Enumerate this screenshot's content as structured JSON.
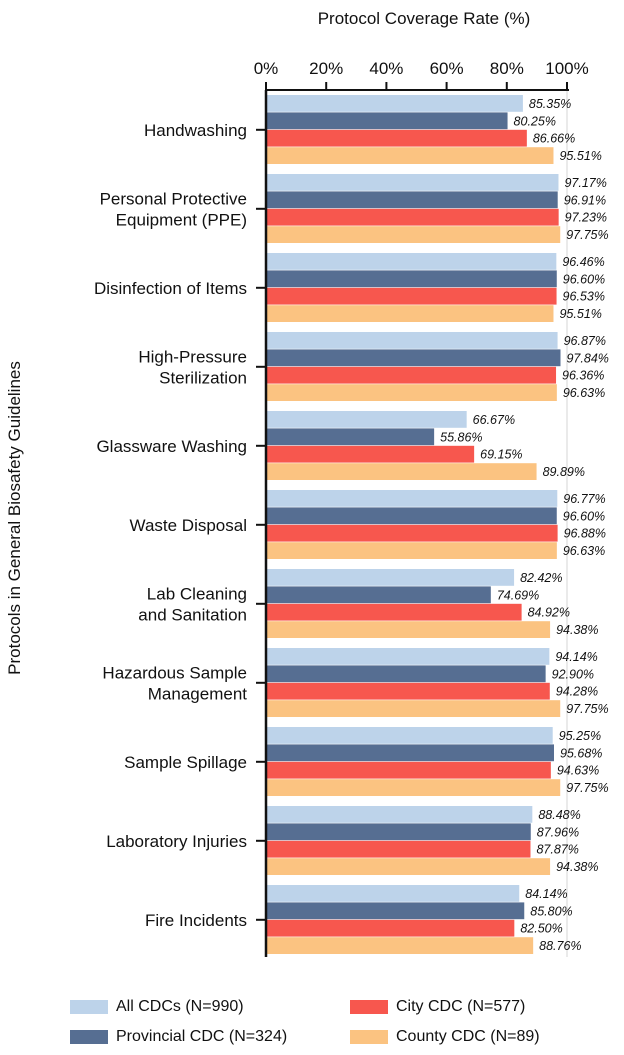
{
  "chart_data": {
    "type": "bar",
    "orientation": "horizontal",
    "title": "Protocol Coverage Rate (%)",
    "xlabel": "Protocol Coverage Rate (%)",
    "ylabel": "Protocols in General Biosafety Guidelines",
    "xlim": [
      0,
      100
    ],
    "x_ticks": [
      "0%",
      "20%",
      "40%",
      "60%",
      "80%",
      "100%"
    ],
    "x_tick_values": [
      0,
      20,
      40,
      60,
      80,
      100
    ],
    "x_axis_position": "top",
    "grid": "vertical-at-100",
    "legend_position": "bottom",
    "categories": [
      [
        "Handwashing"
      ],
      [
        "Personal Protective",
        "Equipment (PPE)"
      ],
      [
        "Disinfection of Items"
      ],
      [
        "High-Pressure",
        "Sterilization"
      ],
      [
        "Glassware Washing"
      ],
      [
        "Waste Disposal"
      ],
      [
        "Lab Cleaning",
        "and Sanitation"
      ],
      [
        "Hazardous Sample",
        "Management"
      ],
      [
        "Sample Spillage"
      ],
      [
        "Laboratory Injuries"
      ],
      [
        "Fire Incidents"
      ]
    ],
    "series": [
      {
        "name": "All CDCs (N=990)",
        "color": "#bdd3ea",
        "values": [
          85.35,
          97.17,
          96.46,
          96.87,
          66.67,
          96.77,
          82.42,
          94.14,
          95.25,
          88.48,
          84.14
        ],
        "labels": [
          "85.35%",
          "97.17%",
          "96.46%",
          "96.87%",
          "66.67%",
          "96.77%",
          "82.42%",
          "94.14%",
          "95.25%",
          "88.48%",
          "84.14%"
        ]
      },
      {
        "name": "Provincial CDC (N=324)",
        "color": "#566e92",
        "values": [
          80.25,
          96.91,
          96.6,
          97.84,
          55.86,
          96.6,
          74.69,
          92.9,
          95.68,
          87.96,
          85.8
        ],
        "labels": [
          "80.25%",
          "96.91%",
          "96.60%",
          "97.84%",
          "55.86%",
          "96.60%",
          "74.69%",
          "92.90%",
          "95.68%",
          "87.96%",
          "85.80%"
        ]
      },
      {
        "name": "City CDC (N=577)",
        "color": "#f7574e",
        "values": [
          86.66,
          97.23,
          96.53,
          96.36,
          69.15,
          96.88,
          84.92,
          94.28,
          94.63,
          87.87,
          82.5
        ],
        "labels": [
          "86.66%",
          "97.23%",
          "96.53%",
          "96.36%",
          "69.15%",
          "96.88%",
          "84.92%",
          "94.28%",
          "94.63%",
          "87.87%",
          "82.50%"
        ]
      },
      {
        "name": "County CDC (N=89)",
        "color": "#fbc381",
        "values": [
          95.51,
          97.75,
          95.51,
          96.63,
          89.89,
          96.63,
          94.38,
          97.75,
          97.75,
          94.38,
          88.76
        ],
        "labels": [
          "95.51%",
          "97.75%",
          "95.51%",
          "96.63%",
          "89.89%",
          "96.63%",
          "94.38%",
          "97.75%",
          "97.75%",
          "94.38%",
          "88.76%"
        ]
      }
    ]
  },
  "legend": {
    "items": [
      {
        "label": "All CDCs (N=990)",
        "color": "#bdd3ea"
      },
      {
        "label": "City CDC (N=577)",
        "color": "#f7574e"
      },
      {
        "label": "Provincial CDC (N=324)",
        "color": "#566e92"
      },
      {
        "label": "County CDC (N=89)",
        "color": "#fbc381"
      }
    ]
  }
}
